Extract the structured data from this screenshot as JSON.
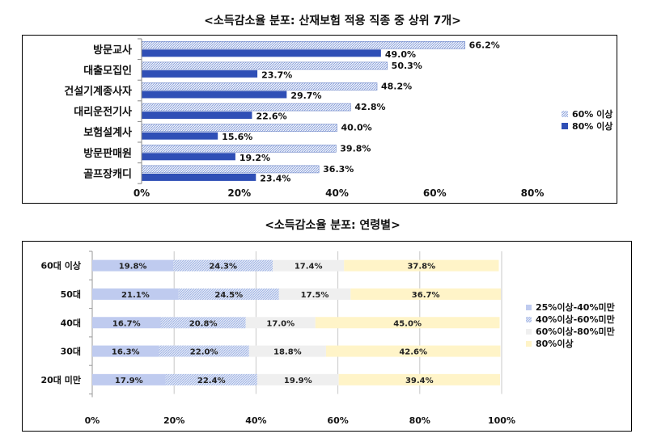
{
  "chart_data": [
    {
      "type": "bar",
      "orientation": "horizontal",
      "title": "<소득감소율 분포: 산재보험 적용 직종 중 상위 7개>",
      "categories": [
        "방문교사",
        "대출모집인",
        "건설기계종사자",
        "대리운전기사",
        "보험설계사",
        "방문판매원",
        "골프장캐디"
      ],
      "series": [
        {
          "name": "60% 이상",
          "color": "#c8d3ee",
          "pattern": "hatch",
          "values": [
            66.2,
            50.3,
            48.2,
            42.8,
            40.0,
            39.8,
            36.3
          ],
          "labels": [
            "66.2%",
            "50.3%",
            "48.2%",
            "42.8%",
            "40.0%",
            "39.8%",
            "36.3%"
          ]
        },
        {
          "name": "80% 이상",
          "color": "#2f4fb6",
          "values": [
            49.0,
            23.7,
            29.7,
            22.6,
            15.6,
            19.2,
            23.4
          ],
          "labels": [
            "49.0%",
            "23.7%",
            "29.7%",
            "22.6%",
            "15.6%",
            "19.2%",
            "23.4%"
          ]
        }
      ],
      "xlim": [
        0,
        80
      ],
      "xticks": [
        "0%",
        "20%",
        "40%",
        "60%",
        "80%"
      ],
      "grid": false,
      "legend": "right"
    },
    {
      "type": "bar",
      "orientation": "horizontal",
      "stacked": true,
      "title": "<소득감소율 분포: 연령별>",
      "categories": [
        "60대 이상",
        "50대",
        "40대",
        "30대",
        "20대 미만"
      ],
      "series": [
        {
          "name": "25%이상-40%미만",
          "color": "#bfcbef",
          "values": [
            19.8,
            21.1,
            16.7,
            16.3,
            17.9
          ],
          "labels": [
            "19.8%",
            "21.1%",
            "16.7%",
            "16.3%",
            "17.9%"
          ]
        },
        {
          "name": "40%이상-60%미만",
          "color": "#c9d4f0",
          "pattern": "hatch",
          "values": [
            24.3,
            24.5,
            20.8,
            22.0,
            22.4
          ],
          "labels": [
            "24.3%",
            "24.5%",
            "20.8%",
            "22.0%",
            "22.4%"
          ]
        },
        {
          "name": "60%이상-80%미만",
          "color": "#efefef",
          "values": [
            17.4,
            17.5,
            17.0,
            18.8,
            19.9
          ],
          "labels": [
            "17.4%",
            "17.5%",
            "17.0%",
            "18.8%",
            "19.9%"
          ]
        },
        {
          "name": "80%이상",
          "color": "#fff4c8",
          "values": [
            37.8,
            36.7,
            45.0,
            42.6,
            39.4
          ],
          "labels": [
            "37.8%",
            "36.7%",
            "45.0%",
            "42.6%",
            "39.4%"
          ]
        }
      ],
      "xlim": [
        0,
        100
      ],
      "xticks": [
        "0%",
        "20%",
        "40%",
        "60%",
        "80%",
        "100%"
      ],
      "grid": true,
      "legend": "right"
    }
  ]
}
